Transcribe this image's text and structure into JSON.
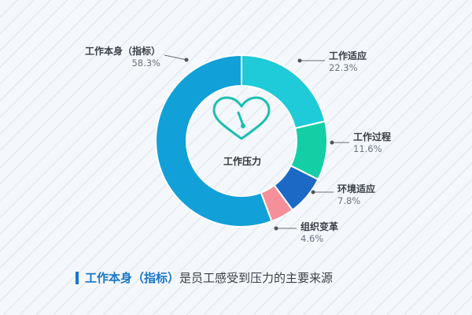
{
  "chart_data": {
    "type": "pie",
    "variant": "donut",
    "center_label": "工作压力",
    "center_icon": "heart-gauge-icon",
    "slices": [
      {
        "label": "工作适应",
        "value": 22.3,
        "display": "22.3%",
        "color": "#1fcbd8"
      },
      {
        "label": "工作过程",
        "value": 11.6,
        "display": "11.6%",
        "color": "#14cfa6"
      },
      {
        "label": "环境适应",
        "value": 7.8,
        "display": "7.8%",
        "color": "#1b69c4"
      },
      {
        "label": "组织变革",
        "value": 4.6,
        "display": "4.6%",
        "color": "#f5909a"
      },
      {
        "label": "工作本身（指标）",
        "value": 58.3,
        "display": "58.3%",
        "color": "#12a0d8"
      }
    ]
  },
  "caption": {
    "highlight": "工作本身（指标）",
    "rest": "是员工感受到压力的主要来源",
    "accent_color": "#1677c9"
  }
}
